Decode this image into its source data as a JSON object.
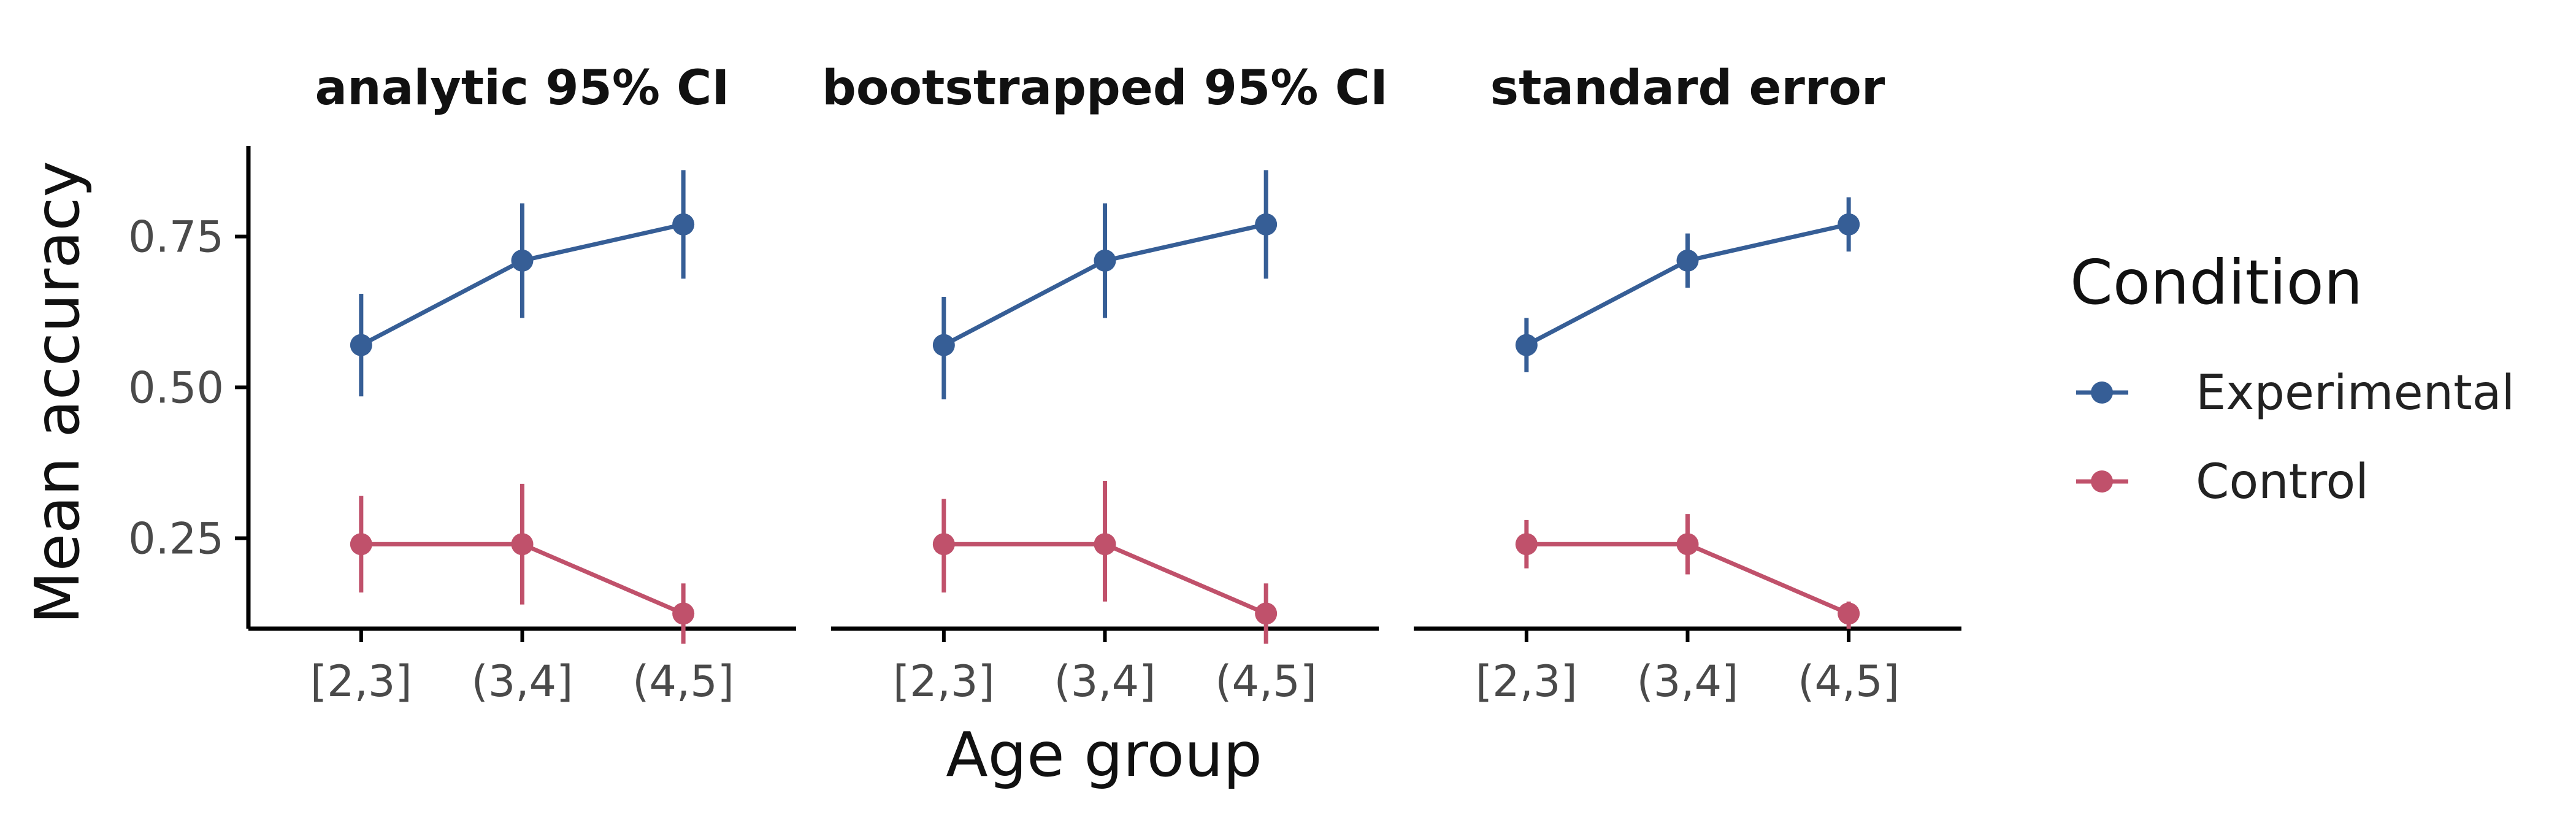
{
  "chart_data": {
    "type": "line",
    "xlabel": "Age group",
    "ylabel": "Mean accuracy",
    "categories": [
      "[2,3]",
      "(3,4]",
      "(4,5]"
    ],
    "ylim": [
      0.1,
      0.9
    ],
    "yticks": [
      0.25,
      0.5,
      0.75
    ],
    "ytick_labels": [
      "0.25",
      "0.50",
      "0.75"
    ],
    "grid": false,
    "legend": {
      "title": "Condition",
      "position": "right",
      "entries": [
        "Experimental",
        "Control"
      ]
    },
    "colors": {
      "Experimental": "#365e96",
      "Control": "#c0516b"
    },
    "panels": [
      {
        "title": "analytic 95% CI",
        "series": [
          {
            "name": "Experimental",
            "values": [
              0.57,
              0.71,
              0.77
            ],
            "lower": [
              0.485,
              0.615,
              0.68
            ],
            "upper": [
              0.655,
              0.805,
              0.86
            ]
          },
          {
            "name": "Control",
            "values": [
              0.24,
              0.24,
              0.125
            ],
            "lower": [
              0.16,
              0.14,
              0.075
            ],
            "upper": [
              0.32,
              0.34,
              0.175
            ]
          }
        ]
      },
      {
        "title": "bootstrapped 95% CI",
        "series": [
          {
            "name": "Experimental",
            "values": [
              0.57,
              0.71,
              0.77
            ],
            "lower": [
              0.48,
              0.615,
              0.68
            ],
            "upper": [
              0.65,
              0.805,
              0.86
            ]
          },
          {
            "name": "Control",
            "values": [
              0.24,
              0.24,
              0.125
            ],
            "lower": [
              0.16,
              0.145,
              0.075
            ],
            "upper": [
              0.315,
              0.345,
              0.175
            ]
          }
        ]
      },
      {
        "title": "standard error",
        "series": [
          {
            "name": "Experimental",
            "values": [
              0.57,
              0.71,
              0.77
            ],
            "lower": [
              0.525,
              0.665,
              0.725
            ],
            "upper": [
              0.615,
              0.755,
              0.815
            ]
          },
          {
            "name": "Control",
            "values": [
              0.24,
              0.24,
              0.125
            ],
            "lower": [
              0.2,
              0.19,
              0.1
            ],
            "upper": [
              0.28,
              0.29,
              0.145
            ]
          }
        ]
      }
    ]
  }
}
